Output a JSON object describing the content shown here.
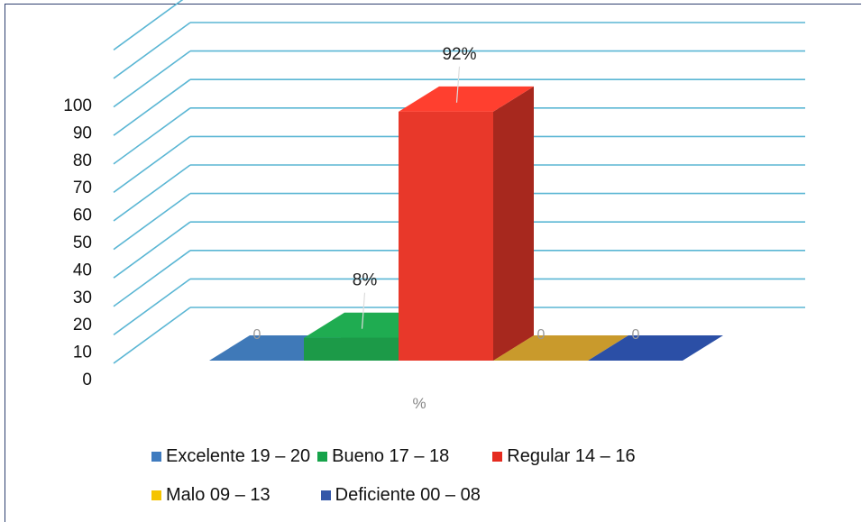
{
  "chart_data": {
    "type": "bar",
    "categories": [
      "Excelente 19 – 20",
      "Bueno 17 – 18",
      "Regular 14 – 16",
      "Malo 09 – 13",
      "Deficiente 00 – 08"
    ],
    "values": [
      0,
      8,
      92,
      0,
      0
    ],
    "data_labels": [
      "0",
      "8%",
      "92%",
      "0",
      "0"
    ],
    "colors": [
      "#3f79b8",
      "#1c9a48",
      "#e8382a",
      "#c99a2c",
      "#2b4fa6"
    ],
    "y_ticks": [
      "0",
      "10",
      "20",
      "30",
      "40",
      "50",
      "60",
      "70",
      "80",
      "90",
      "100"
    ],
    "ylim": [
      0,
      100
    ],
    "xlabel": "%",
    "grid": true,
    "style": "3d",
    "legend_position": "bottom"
  },
  "legend": {
    "row1": [
      "Excelente 19 – 20",
      "Bueno 17 – 18",
      "Regular 14 – 16"
    ],
    "row2": [
      "Malo 09 – 13",
      "Deficiente 00 – 08"
    ],
    "swatch_colors": [
      "#3f7bbf",
      "#16a34a",
      "#e52b1f",
      "#f5c400",
      "#3457a8"
    ]
  }
}
